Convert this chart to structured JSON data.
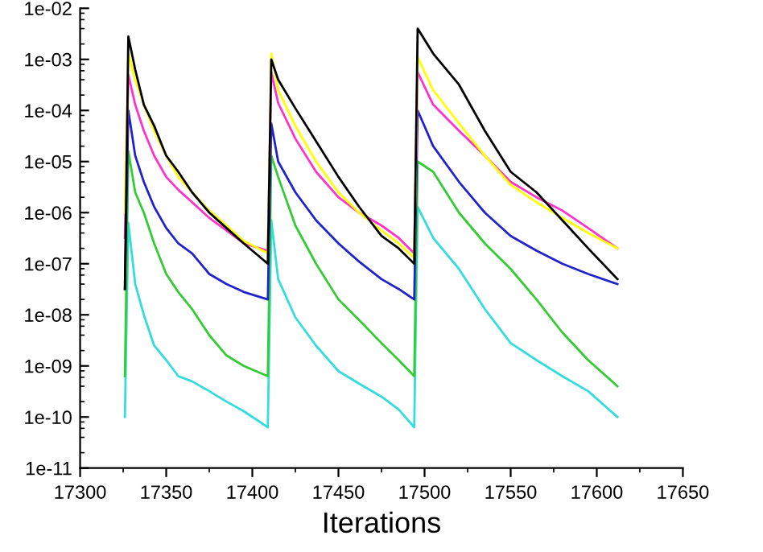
{
  "chart_data": {
    "type": "line",
    "xlabel": "Iterations",
    "x": [
      17326,
      17328,
      17332,
      17337,
      17343,
      17350,
      17357,
      17365,
      17375,
      17385,
      17395,
      17409,
      17411,
      17415,
      17425,
      17437,
      17450,
      17462,
      17475,
      17485,
      17494,
      17496,
      17505,
      17520,
      17535,
      17550,
      17565,
      17580,
      17595,
      17612
    ],
    "series": [
      {
        "color": "#000000",
        "values": [
          3.2e-08,
          0.0028,
          0.00063,
          0.00013,
          5e-05,
          1.3e-05,
          6.3e-06,
          2.5e-06,
          1e-06,
          5e-07,
          2.5e-07,
          1e-07,
          0.001,
          0.0004,
          0.00011,
          2.5e-05,
          5e-06,
          1.3e-06,
          3.5e-07,
          2e-07,
          1e-07,
          0.004,
          0.0013,
          0.00032,
          4e-05,
          6.3e-06,
          2.5e-06,
          7.1e-07,
          2e-07,
          5e-08
        ]
      },
      {
        "color": "#ffff00",
        "values": [
          1e-06,
          0.0013,
          0.0004,
          0.00013,
          4e-05,
          1.3e-05,
          5e-06,
          2.5e-06,
          1.1e-06,
          5.6e-07,
          2.8e-07,
          1.6e-07,
          0.0013,
          0.00025,
          5e-05,
          1e-05,
          2.5e-06,
          1e-06,
          4.5e-07,
          2.5e-07,
          1.3e-07,
          0.0011,
          0.00025,
          5.6e-05,
          1.3e-05,
          3.5e-06,
          1.6e-06,
          7.9e-07,
          4e-07,
          2e-07
        ]
      },
      {
        "color": "#ff33cc",
        "values": [
          3.2e-07,
          0.0005,
          0.00013,
          4e-05,
          1.3e-05,
          5e-06,
          2.8e-06,
          1.6e-06,
          7.9e-07,
          4.5e-07,
          2.5e-07,
          1.8e-07,
          0.00056,
          0.00014,
          2.8e-05,
          6.3e-06,
          2e-06,
          1e-06,
          5.6e-07,
          3.2e-07,
          1.6e-07,
          0.00056,
          0.00013,
          4e-05,
          1.3e-05,
          4e-06,
          2e-06,
          1.1e-06,
          5e-07,
          2e-07
        ]
      },
      {
        "color": "#2222cc",
        "values": [
          3.2e-08,
          0.0001,
          1.3e-05,
          4e-06,
          1.3e-06,
          5e-07,
          2.5e-07,
          1.6e-07,
          6.3e-08,
          4e-08,
          2.8e-08,
          2e-08,
          5.6e-05,
          1e-05,
          2.5e-06,
          7.1e-07,
          2.5e-07,
          1.1e-07,
          5e-08,
          3.2e-08,
          2e-08,
          0.0001,
          2e-05,
          4e-06,
          1e-06,
          3.5e-07,
          1.8e-07,
          1e-07,
          6.3e-08,
          4e-08
        ]
      },
      {
        "color": "#33cc33",
        "values": [
          6.3e-10,
          1.6e-05,
          2.5e-06,
          1e-06,
          2.5e-07,
          6.3e-08,
          2.8e-08,
          1.3e-08,
          4e-09,
          1.6e-09,
          1e-09,
          6.3e-10,
          1.3e-05,
          5e-06,
          5.6e-07,
          1e-07,
          2e-08,
          7.9e-09,
          2.8e-09,
          1.3e-09,
          6.3e-10,
          1e-05,
          6.3e-06,
          1e-06,
          2.5e-07,
          7.9e-08,
          2e-08,
          4.5e-09,
          1.3e-09,
          4e-10
        ]
      },
      {
        "color": "#33dddd",
        "values": [
          1e-10,
          6.3e-07,
          4e-08,
          1e-08,
          2.5e-09,
          1.3e-09,
          6.3e-10,
          5e-10,
          3.2e-10,
          2e-10,
          1.3e-10,
          6.3e-11,
          7.1e-07,
          5e-08,
          8.9e-09,
          2.5e-09,
          7.9e-10,
          4.5e-10,
          2.5e-10,
          1.4e-10,
          6.3e-11,
          1.3e-06,
          3.2e-07,
          7.9e-08,
          1.3e-08,
          2.8e-09,
          1.3e-09,
          6.3e-10,
          3.2e-10,
          1e-10
        ]
      }
    ],
    "log": "y",
    "xlim": [
      17300,
      17650
    ],
    "xticks": [
      17300,
      17350,
      17400,
      17450,
      17500,
      17550,
      17600,
      17650
    ],
    "ylim": [
      1e-11,
      0.01
    ],
    "yticks": [
      {
        "value": 1e-11,
        "label": "1e-11"
      },
      {
        "value": 1e-10,
        "label": "1e-10"
      },
      {
        "value": 1e-09,
        "label": "1e-09"
      },
      {
        "value": 1e-08,
        "label": "1e-08"
      },
      {
        "value": 1e-07,
        "label": "1e-07"
      },
      {
        "value": 1e-06,
        "label": "1e-06"
      },
      {
        "value": 1e-05,
        "label": "1e-05"
      },
      {
        "value": 0.0001,
        "label": "1e-04"
      },
      {
        "value": 0.001,
        "label": "1e-03"
      },
      {
        "value": 0.01,
        "label": "1e-02"
      }
    ],
    "grid": false,
    "marker": "none",
    "line_style": "solid"
  }
}
